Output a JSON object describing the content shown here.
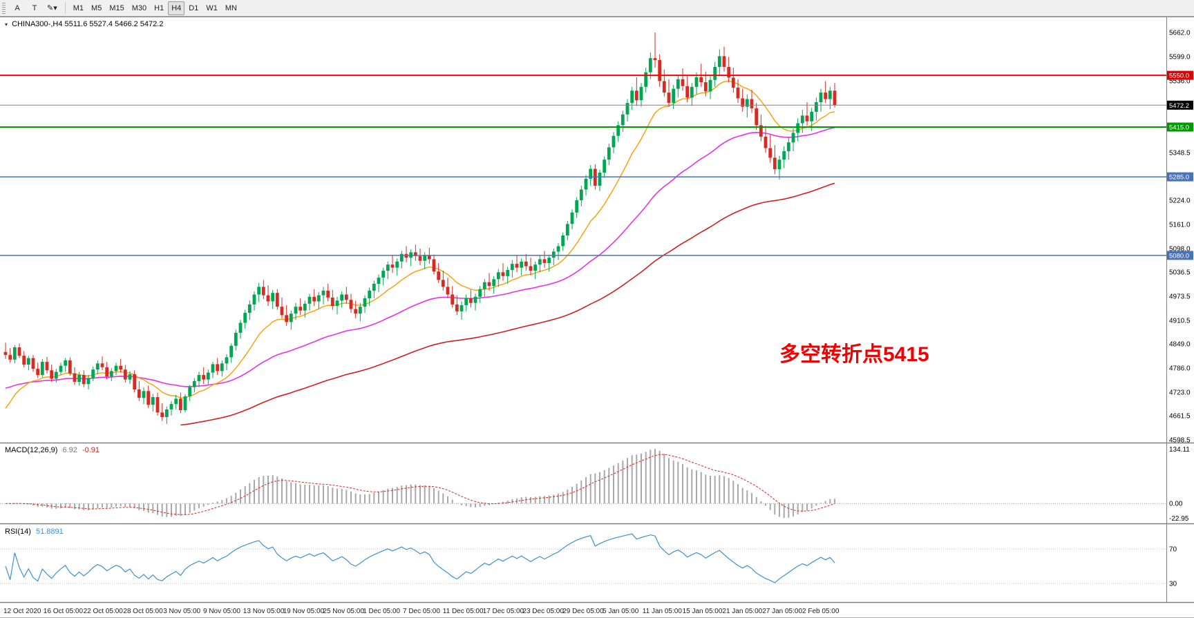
{
  "toolbar": {
    "tools": [
      "A",
      "T",
      "✎▾"
    ],
    "timeframes": [
      {
        "label": "M1",
        "active": false
      },
      {
        "label": "M5",
        "active": false
      },
      {
        "label": "M15",
        "active": false
      },
      {
        "label": "M30",
        "active": false
      },
      {
        "label": "H1",
        "active": false
      },
      {
        "label": "H4",
        "active": true
      },
      {
        "label": "D1",
        "active": false
      },
      {
        "label": "W1",
        "active": false
      },
      {
        "label": "MN",
        "active": false
      }
    ]
  },
  "annotation": {
    "text": "多空转折点5415",
    "color": "#f00000"
  },
  "indicators": {
    "macd": {
      "title": "MACD(12,26,9)",
      "main_value": "6.92",
      "signal_value": "-0.91",
      "axis": [
        "134.11",
        "0.00",
        "-22.95"
      ]
    },
    "rsi": {
      "title": "RSI(14)",
      "value": "51.8891",
      "axis": [
        "70",
        "30"
      ]
    }
  },
  "chart_data": {
    "type": "candlestick",
    "symbol_label": "CHINA300-,H4",
    "ohlc_display": "5511.6 5527.4 5466.2 5472.2",
    "ylim": [
      4598.5,
      5662.0
    ],
    "colors": {
      "up": "#00a651",
      "down": "#d62b22",
      "ma_fast": "#ff9c00",
      "ma_mid": "#e632e6",
      "ma_slow": "#d01f1f",
      "macd_bar": "#a8a8a8",
      "macd_signal": "#dd2222",
      "rsi_line": "#3f8fd0"
    },
    "hlines": [
      {
        "price": 5550.0,
        "label": "5550.0",
        "color": "#ff0000",
        "badge": "#e00000",
        "width": 2
      },
      {
        "price": 5472.2,
        "label": "5472.2",
        "color": "#808080",
        "badge": "#000000",
        "width": 1
      },
      {
        "price": 5415.0,
        "label": "5415.0",
        "color": "#009900",
        "badge": "#009900",
        "width": 2
      },
      {
        "price": 5285.0,
        "label": "5285.0",
        "color": "#4a72b8",
        "badge": "#4a72b8",
        "width": 1.5
      },
      {
        "price": 5080.0,
        "label": "5080.0",
        "color": "#4a72b8",
        "badge": "#4a72b8",
        "width": 1.5
      }
    ],
    "y_ticks": [
      {
        "price": 5662.0,
        "label": "5662.0"
      },
      {
        "price": 5599.0,
        "label": "5599.0"
      },
      {
        "price": 5536.0,
        "label": "5536.0"
      },
      {
        "price": 5348.5,
        "label": "5348.5"
      },
      {
        "price": 5224.0,
        "label": "5224.0"
      },
      {
        "price": 5161.0,
        "label": "5161.0"
      },
      {
        "price": 5098.0,
        "label": "5098.0"
      },
      {
        "price": 5036.5,
        "label": "5036.5"
      },
      {
        "price": 4973.5,
        "label": "4973.5"
      },
      {
        "price": 4910.5,
        "label": "4910.5"
      },
      {
        "price": 4849.0,
        "label": "4849.0"
      },
      {
        "price": 4786.0,
        "label": "4786.0"
      },
      {
        "price": 4723.0,
        "label": "4723.0"
      },
      {
        "price": 4661.5,
        "label": "4661.5"
      },
      {
        "price": 4598.5,
        "label": "4598.5"
      }
    ],
    "x_labels": [
      "12 Oct 2020",
      "16 Oct 05:00",
      "22 Oct 05:00",
      "28 Oct 05:00",
      "3 Nov 05:00",
      "9 Nov 05:00",
      "13 Nov 05:00",
      "19 Nov 05:00",
      "25 Nov 05:00",
      "1 Dec 05:00",
      "7 Dec 05:00",
      "11 Dec 05:00",
      "17 Dec 05:00",
      "23 Dec 05:00",
      "29 Dec 05:00",
      "5 Jan 05:00",
      "11 Jan 05:00",
      "15 Jan 05:00",
      "21 Jan 05:00",
      "27 Jan 05:00",
      "2 Feb 05:00"
    ],
    "candles": [
      [
        4828,
        4852,
        4810,
        4820
      ],
      [
        4820,
        4838,
        4800,
        4808
      ],
      [
        4808,
        4846,
        4798,
        4840
      ],
      [
        4840,
        4850,
        4812,
        4818
      ],
      [
        4818,
        4830,
        4788,
        4795
      ],
      [
        4795,
        4818,
        4780,
        4812
      ],
      [
        4812,
        4820,
        4776,
        4784
      ],
      [
        4784,
        4800,
        4760,
        4768
      ],
      [
        4768,
        4810,
        4762,
        4802
      ],
      [
        4802,
        4815,
        4772,
        4780
      ],
      [
        4780,
        4795,
        4750,
        4758
      ],
      [
        4758,
        4784,
        4748,
        4776
      ],
      [
        4776,
        4800,
        4768,
        4792
      ],
      [
        4792,
        4812,
        4776,
        4806
      ],
      [
        4806,
        4814,
        4766,
        4772
      ],
      [
        4772,
        4788,
        4742,
        4750
      ],
      [
        4750,
        4776,
        4740,
        4768
      ],
      [
        4768,
        4780,
        4736,
        4744
      ],
      [
        4744,
        4768,
        4730,
        4760
      ],
      [
        4760,
        4790,
        4752,
        4782
      ],
      [
        4782,
        4806,
        4770,
        4798
      ],
      [
        4798,
        4816,
        4780,
        4788
      ],
      [
        4788,
        4802,
        4756,
        4764
      ],
      [
        4764,
        4786,
        4752,
        4778
      ],
      [
        4778,
        4800,
        4768,
        4792
      ],
      [
        4792,
        4810,
        4774,
        4782
      ],
      [
        4782,
        4794,
        4748,
        4756
      ],
      [
        4756,
        4778,
        4744,
        4770
      ],
      [
        4770,
        4780,
        4722,
        4730
      ],
      [
        4730,
        4752,
        4700,
        4708
      ],
      [
        4708,
        4736,
        4692,
        4726
      ],
      [
        4726,
        4740,
        4682,
        4690
      ],
      [
        4690,
        4718,
        4672,
        4710
      ],
      [
        4710,
        4722,
        4662,
        4670
      ],
      [
        4670,
        4694,
        4648,
        4658
      ],
      [
        4658,
        4686,
        4640,
        4678
      ],
      [
        4678,
        4700,
        4662,
        4692
      ],
      [
        4692,
        4716,
        4678,
        4706
      ],
      [
        4706,
        4722,
        4668,
        4676
      ],
      [
        4676,
        4718,
        4670,
        4712
      ],
      [
        4712,
        4742,
        4700,
        4736
      ],
      [
        4736,
        4760,
        4722,
        4752
      ],
      [
        4752,
        4776,
        4736,
        4768
      ],
      [
        4768,
        4788,
        4744,
        4756
      ],
      [
        4756,
        4782,
        4742,
        4774
      ],
      [
        4774,
        4802,
        4760,
        4796
      ],
      [
        4796,
        4812,
        4768,
        4778
      ],
      [
        4778,
        4806,
        4764,
        4798
      ],
      [
        4798,
        4822,
        4780,
        4814
      ],
      [
        4814,
        4850,
        4800,
        4844
      ],
      [
        4844,
        4886,
        4832,
        4878
      ],
      [
        4878,
        4912,
        4862,
        4904
      ],
      [
        4904,
        4938,
        4888,
        4930
      ],
      [
        4930,
        4962,
        4912,
        4952
      ],
      [
        4952,
        4986,
        4936,
        4978
      ],
      [
        4978,
        5008,
        4958,
        4998
      ],
      [
        4998,
        5016,
        4966,
        4976
      ],
      [
        4976,
        5002,
        4948,
        4960
      ],
      [
        4960,
        4990,
        4940,
        4982
      ],
      [
        4982,
        4992,
        4938,
        4946
      ],
      [
        4946,
        4970,
        4916,
        4924
      ],
      [
        4924,
        4950,
        4896,
        4906
      ],
      [
        4906,
        4936,
        4886,
        4928
      ],
      [
        4928,
        4956,
        4912,
        4946
      ],
      [
        4946,
        4968,
        4924,
        4936
      ],
      [
        4936,
        4962,
        4918,
        4954
      ],
      [
        4954,
        4980,
        4936,
        4972
      ],
      [
        4972,
        4992,
        4948,
        4960
      ],
      [
        4960,
        4984,
        4940,
        4976
      ],
      [
        4976,
        4998,
        4952,
        4988
      ],
      [
        4988,
        5006,
        4960,
        4970
      ],
      [
        4970,
        4990,
        4938,
        4948
      ],
      [
        4948,
        4972,
        4926,
        4962
      ],
      [
        4962,
        4986,
        4944,
        4978
      ],
      [
        4978,
        4998,
        4954,
        4964
      ],
      [
        4964,
        4980,
        4930,
        4940
      ],
      [
        4940,
        4962,
        4916,
        4928
      ],
      [
        4928,
        4956,
        4908,
        4946
      ],
      [
        4946,
        4976,
        4930,
        4968
      ],
      [
        4968,
        4996,
        4948,
        4988
      ],
      [
        4988,
        5014,
        4968,
        5006
      ],
      [
        5006,
        5030,
        4984,
        5022
      ],
      [
        5022,
        5048,
        5002,
        5040
      ],
      [
        5040,
        5064,
        5018,
        5056
      ],
      [
        5056,
        5080,
        5034,
        5048
      ],
      [
        5048,
        5072,
        5028,
        5064
      ],
      [
        5064,
        5092,
        5046,
        5084
      ],
      [
        5084,
        5104,
        5062,
        5074
      ],
      [
        5074,
        5096,
        5052,
        5088
      ],
      [
        5088,
        5108,
        5066,
        5078
      ],
      [
        5078,
        5098,
        5054,
        5066
      ],
      [
        5066,
        5088,
        5044,
        5080
      ],
      [
        5080,
        5100,
        5058,
        5070
      ],
      [
        5070,
        5082,
        5030,
        5038
      ],
      [
        5038,
        5060,
        5008,
        5016
      ],
      [
        5016,
        5040,
        4988,
        4998
      ],
      [
        4998,
        5022,
        4968,
        4978
      ],
      [
        4978,
        5000,
        4944,
        4952
      ],
      [
        4952,
        4976,
        4924,
        4934
      ],
      [
        4934,
        4960,
        4912,
        4950
      ],
      [
        4950,
        4978,
        4934,
        4968
      ],
      [
        4968,
        4990,
        4944,
        4956
      ],
      [
        4956,
        4980,
        4936,
        4972
      ],
      [
        4972,
        5000,
        4956,
        4992
      ],
      [
        4992,
        5018,
        4972,
        5010
      ],
      [
        5010,
        5034,
        4988,
        5000
      ],
      [
        5000,
        5026,
        4980,
        5018
      ],
      [
        5018,
        5044,
        4998,
        5036
      ],
      [
        5036,
        5060,
        5014,
        5026
      ],
      [
        5026,
        5050,
        5006,
        5042
      ],
      [
        5042,
        5068,
        5022,
        5058
      ],
      [
        5058,
        5080,
        5036,
        5048
      ],
      [
        5048,
        5072,
        5028,
        5064
      ],
      [
        5064,
        5084,
        5040,
        5052
      ],
      [
        5052,
        5074,
        5028,
        5040
      ],
      [
        5040,
        5064,
        5018,
        5056
      ],
      [
        5056,
        5080,
        5036,
        5070
      ],
      [
        5070,
        5092,
        5048,
        5060
      ],
      [
        5060,
        5082,
        5038,
        5074
      ],
      [
        5074,
        5098,
        5054,
        5090
      ],
      [
        5090,
        5112,
        5068,
        5104
      ],
      [
        5104,
        5140,
        5092,
        5132
      ],
      [
        5132,
        5170,
        5120,
        5162
      ],
      [
        5162,
        5200,
        5148,
        5192
      ],
      [
        5192,
        5232,
        5178,
        5224
      ],
      [
        5224,
        5262,
        5208,
        5252
      ],
      [
        5252,
        5290,
        5236,
        5280
      ],
      [
        5280,
        5316,
        5262,
        5306
      ],
      [
        5306,
        5318,
        5252,
        5262
      ],
      [
        5262,
        5304,
        5248,
        5296
      ],
      [
        5296,
        5338,
        5282,
        5330
      ],
      [
        5330,
        5372,
        5316,
        5362
      ],
      [
        5362,
        5402,
        5346,
        5392
      ],
      [
        5392,
        5430,
        5376,
        5420
      ],
      [
        5420,
        5458,
        5402,
        5448
      ],
      [
        5448,
        5488,
        5430,
        5478
      ],
      [
        5478,
        5520,
        5460,
        5510
      ],
      [
        5510,
        5545,
        5470,
        5485
      ],
      [
        5485,
        5530,
        5468,
        5520
      ],
      [
        5520,
        5570,
        5505,
        5558
      ],
      [
        5558,
        5610,
        5540,
        5595
      ],
      [
        5595,
        5662,
        5570,
        5590
      ],
      [
        5590,
        5605,
        5520,
        5535
      ],
      [
        5535,
        5565,
        5495,
        5505
      ],
      [
        5505,
        5540,
        5468,
        5478
      ],
      [
        5478,
        5525,
        5462,
        5515
      ],
      [
        5515,
        5552,
        5492,
        5540
      ],
      [
        5540,
        5568,
        5510,
        5522
      ],
      [
        5522,
        5550,
        5480,
        5492
      ],
      [
        5492,
        5530,
        5470,
        5520
      ],
      [
        5520,
        5558,
        5500,
        5545
      ],
      [
        5545,
        5580,
        5520,
        5532
      ],
      [
        5532,
        5560,
        5495,
        5508
      ],
      [
        5508,
        5548,
        5488,
        5538
      ],
      [
        5538,
        5585,
        5520,
        5572
      ],
      [
        5572,
        5618,
        5552,
        5600
      ],
      [
        5600,
        5625,
        5560,
        5572
      ],
      [
        5572,
        5598,
        5532,
        5544
      ],
      [
        5544,
        5570,
        5505,
        5518
      ],
      [
        5518,
        5540,
        5478,
        5490
      ],
      [
        5490,
        5515,
        5455,
        5468
      ],
      [
        5468,
        5500,
        5440,
        5488
      ],
      [
        5488,
        5512,
        5452,
        5464
      ],
      [
        5464,
        5478,
        5408,
        5420
      ],
      [
        5420,
        5448,
        5378,
        5390
      ],
      [
        5390,
        5418,
        5348,
        5360
      ],
      [
        5360,
        5395,
        5322,
        5335
      ],
      [
        5335,
        5368,
        5292,
        5305
      ],
      [
        5305,
        5340,
        5278,
        5330
      ],
      [
        5330,
        5365,
        5308,
        5352
      ],
      [
        5352,
        5388,
        5330,
        5375
      ],
      [
        5375,
        5412,
        5352,
        5400
      ],
      [
        5400,
        5438,
        5378,
        5425
      ],
      [
        5425,
        5460,
        5400,
        5445
      ],
      [
        5445,
        5480,
        5418,
        5430
      ],
      [
        5430,
        5465,
        5405,
        5455
      ],
      [
        5455,
        5492,
        5432,
        5480
      ],
      [
        5480,
        5515,
        5455,
        5505
      ],
      [
        5505,
        5535,
        5478,
        5488
      ],
      [
        5488,
        5520,
        5462,
        5510
      ],
      [
        5510,
        5530,
        5466,
        5472
      ]
    ]
  }
}
